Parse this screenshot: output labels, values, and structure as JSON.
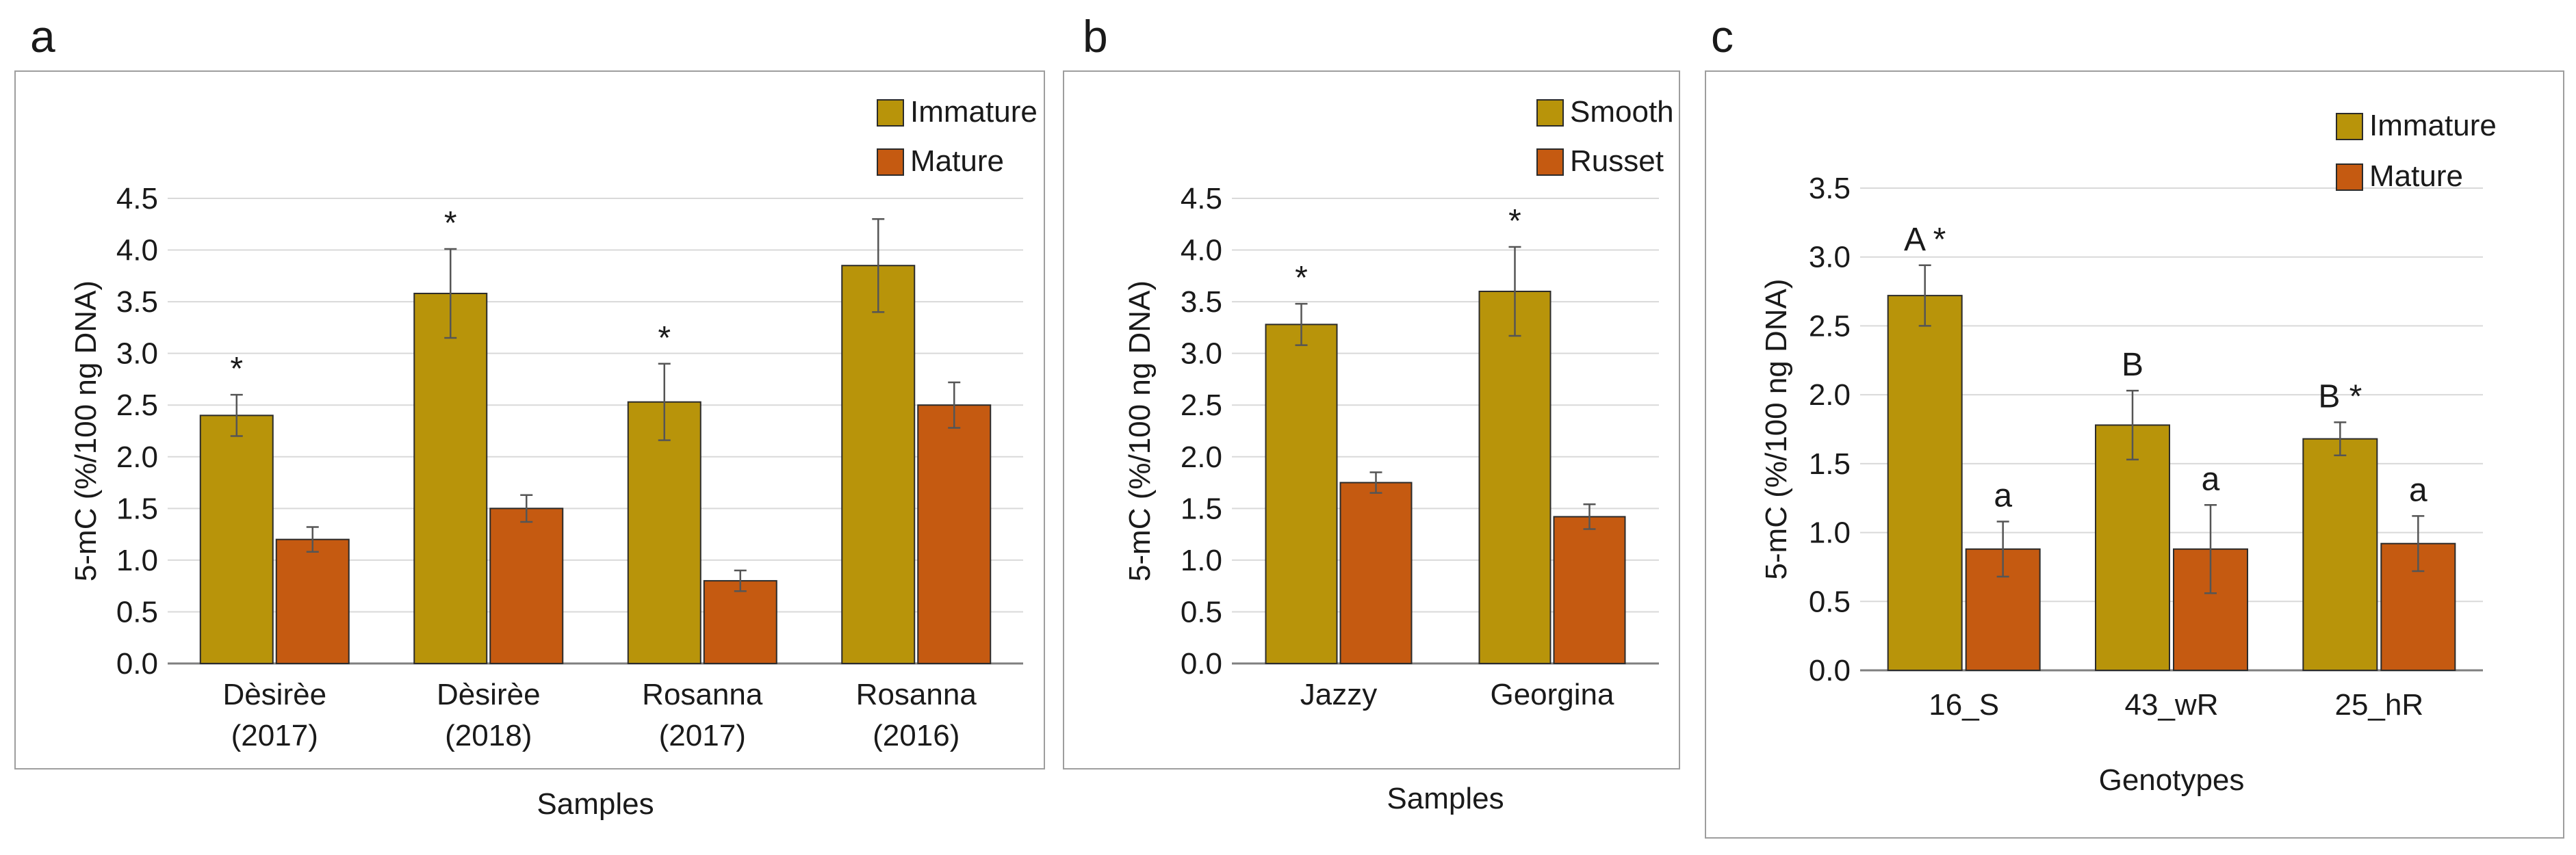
{
  "colors": {
    "primary": "#B8940A",
    "secondary": "#C55A11",
    "axis": "#7f7f7f",
    "grid": "#d9d9d9",
    "error_bar": "#555555"
  },
  "chart_data": [
    {
      "panel_label": "a",
      "type": "bar",
      "xlabel": "Samples",
      "ylabel": "5-mC (%/100 ng DNA)",
      "ylim": [
        0,
        4.5
      ],
      "yticks": [
        "0.0",
        "0.5",
        "1.0",
        "1.5",
        "2.0",
        "2.5",
        "3.0",
        "3.5",
        "4.0",
        "4.5"
      ],
      "ytick_values": [
        0,
        0.5,
        1,
        1.5,
        2,
        2.5,
        3,
        3.5,
        4,
        4.5
      ],
      "grid": true,
      "legend_position": "top-right",
      "categories": [
        [
          "Dèsirèe",
          "(2017)"
        ],
        [
          "Dèsirèe",
          "(2018)"
        ],
        [
          "Rosanna",
          "(2017)"
        ],
        [
          "Rosanna",
          "(2016)"
        ]
      ],
      "series": [
        {
          "name": "Immature",
          "values": [
            2.4,
            3.58,
            2.53,
            3.85
          ],
          "errors": [
            0.2,
            0.43,
            0.37,
            0.45
          ],
          "annotations": [
            "*",
            "*",
            "*",
            ""
          ]
        },
        {
          "name": "Mature",
          "values": [
            1.2,
            1.5,
            0.8,
            2.5
          ],
          "errors": [
            0.12,
            0.13,
            0.1,
            0.22
          ],
          "annotations": [
            "",
            "",
            "",
            ""
          ]
        }
      ]
    },
    {
      "panel_label": "b",
      "type": "bar",
      "xlabel": "Samples",
      "ylabel": "5-mC (%/100 ng DNA)",
      "ylim": [
        0,
        4.5
      ],
      "yticks": [
        "0.0",
        "0.5",
        "1.0",
        "1.5",
        "2.0",
        "2.5",
        "3.0",
        "3.5",
        "4.0",
        "4.5"
      ],
      "ytick_values": [
        0,
        0.5,
        1,
        1.5,
        2,
        2.5,
        3,
        3.5,
        4,
        4.5
      ],
      "grid": true,
      "legend_position": "top-right",
      "categories": [
        [
          "Jazzy"
        ],
        [
          "Georgina"
        ]
      ],
      "series": [
        {
          "name": "Smooth",
          "values": [
            3.28,
            3.6
          ],
          "errors": [
            0.2,
            0.43
          ],
          "annotations": [
            "*",
            "*"
          ]
        },
        {
          "name": "Russet",
          "values": [
            1.75,
            1.42
          ],
          "errors": [
            0.1,
            0.12
          ],
          "annotations": [
            "",
            ""
          ]
        }
      ]
    },
    {
      "panel_label": "c",
      "type": "bar",
      "xlabel": "Genotypes",
      "ylabel": "5-mC (%/100 ng DNA)",
      "ylim": [
        0,
        3.5
      ],
      "yticks": [
        "0.0",
        "0.5",
        "1.0",
        "1.5",
        "2.0",
        "2.5",
        "3.0",
        "3.5"
      ],
      "ytick_values": [
        0,
        0.5,
        1,
        1.5,
        2,
        2.5,
        3,
        3.5
      ],
      "grid": true,
      "legend_position": "top-right",
      "categories": [
        [
          "16_S"
        ],
        [
          "43_wR"
        ],
        [
          "25_hR"
        ]
      ],
      "series": [
        {
          "name": "Immature",
          "values": [
            2.72,
            1.78,
            1.68
          ],
          "errors": [
            0.22,
            0.25,
            0.12
          ],
          "annotations": [
            "A *",
            "B",
            "B *"
          ]
        },
        {
          "name": "Mature",
          "values": [
            0.88,
            0.88,
            0.92
          ],
          "errors": [
            0.2,
            0.32,
            0.2
          ],
          "annotations": [
            "a",
            "a",
            "a"
          ]
        }
      ]
    }
  ]
}
